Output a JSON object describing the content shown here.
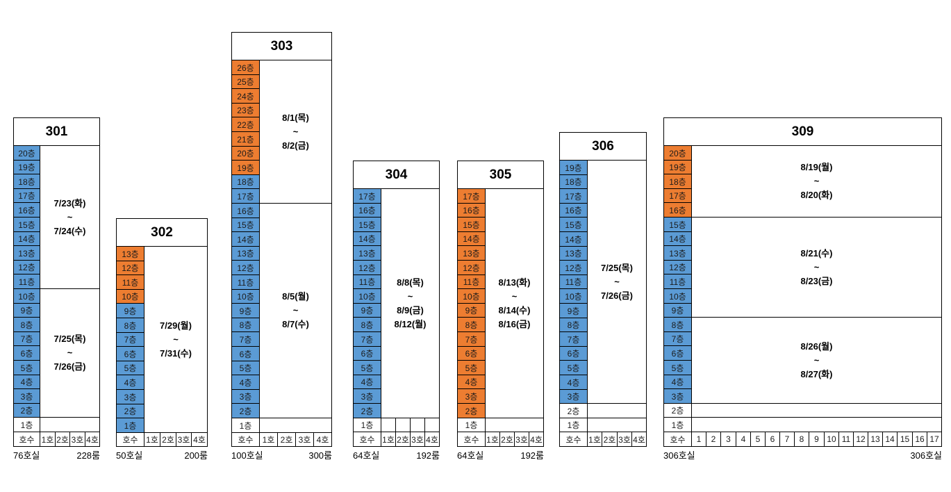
{
  "colors": {
    "blue": "#5B9BD5",
    "orange": "#ED7D31",
    "white": "#FFFFFF",
    "border": "#000000"
  },
  "buildings": [
    {
      "name": "301",
      "floors": [
        {
          "label": "20층",
          "color": "blue"
        },
        {
          "label": "19층",
          "color": "blue"
        },
        {
          "label": "18층",
          "color": "blue"
        },
        {
          "label": "17층",
          "color": "blue"
        },
        {
          "label": "16층",
          "color": "blue"
        },
        {
          "label": "15층",
          "color": "blue"
        },
        {
          "label": "14층",
          "color": "blue"
        },
        {
          "label": "13층",
          "color": "blue"
        },
        {
          "label": "12층",
          "color": "blue"
        },
        {
          "label": "11층",
          "color": "blue"
        },
        {
          "label": "10층",
          "color": "blue"
        },
        {
          "label": "9층",
          "color": "blue"
        },
        {
          "label": "8층",
          "color": "blue"
        },
        {
          "label": "7층",
          "color": "blue"
        },
        {
          "label": "6층",
          "color": "blue"
        },
        {
          "label": "5층",
          "color": "blue"
        },
        {
          "label": "4층",
          "color": "blue"
        },
        {
          "label": "3층",
          "color": "blue"
        },
        {
          "label": "2층",
          "color": "blue"
        },
        {
          "label": "1층",
          "color": "white"
        }
      ],
      "sections": [
        {
          "rows": 10,
          "lines": [
            "7/23(화)",
            "~",
            "7/24(수)"
          ]
        },
        {
          "rows": 9,
          "lines": [
            "7/25(목)",
            "~",
            "7/26(금)"
          ]
        },
        {
          "rows": 1,
          "lines": []
        }
      ],
      "unit_header": "호수",
      "units": [
        "1호",
        "2호",
        "3호",
        "4호"
      ],
      "footer_left": "76호실",
      "footer_right": "228룸"
    },
    {
      "name": "302",
      "floors": [
        {
          "label": "13층",
          "color": "orange"
        },
        {
          "label": "12층",
          "color": "orange"
        },
        {
          "label": "11층",
          "color": "orange"
        },
        {
          "label": "10층",
          "color": "orange"
        },
        {
          "label": "9층",
          "color": "blue"
        },
        {
          "label": "8층",
          "color": "blue"
        },
        {
          "label": "7층",
          "color": "blue"
        },
        {
          "label": "6층",
          "color": "blue"
        },
        {
          "label": "5층",
          "color": "blue"
        },
        {
          "label": "4층",
          "color": "blue"
        },
        {
          "label": "3층",
          "color": "blue"
        },
        {
          "label": "2층",
          "color": "blue"
        },
        {
          "label": "1층",
          "color": "blue"
        }
      ],
      "sections": [
        {
          "rows": 13,
          "lines": [
            "7/29(월)",
            "~",
            "7/31(수)"
          ]
        }
      ],
      "unit_header": "호수",
      "units": [
        "1호",
        "2호",
        "3호",
        "4호"
      ],
      "footer_left": "50호실",
      "footer_right": "200룸"
    },
    {
      "name": "303",
      "floors": [
        {
          "label": "26층",
          "color": "orange"
        },
        {
          "label": "25층",
          "color": "orange"
        },
        {
          "label": "24층",
          "color": "orange"
        },
        {
          "label": "23층",
          "color": "orange"
        },
        {
          "label": "22층",
          "color": "orange"
        },
        {
          "label": "21층",
          "color": "orange"
        },
        {
          "label": "20층",
          "color": "orange"
        },
        {
          "label": "19층",
          "color": "orange"
        },
        {
          "label": "18층",
          "color": "blue"
        },
        {
          "label": "17층",
          "color": "blue"
        },
        {
          "label": "16층",
          "color": "blue"
        },
        {
          "label": "15층",
          "color": "blue"
        },
        {
          "label": "14층",
          "color": "blue"
        },
        {
          "label": "13층",
          "color": "blue"
        },
        {
          "label": "12층",
          "color": "blue"
        },
        {
          "label": "11층",
          "color": "blue"
        },
        {
          "label": "10층",
          "color": "blue"
        },
        {
          "label": "9층",
          "color": "blue"
        },
        {
          "label": "8층",
          "color": "blue"
        },
        {
          "label": "7층",
          "color": "blue"
        },
        {
          "label": "6층",
          "color": "blue"
        },
        {
          "label": "5층",
          "color": "blue"
        },
        {
          "label": "4층",
          "color": "blue"
        },
        {
          "label": "3층",
          "color": "blue"
        },
        {
          "label": "2층",
          "color": "blue"
        },
        {
          "label": "1층",
          "color": "white"
        }
      ],
      "sections": [
        {
          "rows": 10,
          "lines": [
            "8/1(목)",
            "~",
            "8/2(금)"
          ]
        },
        {
          "rows": 15,
          "lines": [
            "8/5(월)",
            "~",
            "8/7(수)"
          ]
        },
        {
          "rows": 1,
          "lines": []
        }
      ],
      "unit_header": "호수",
      "units": [
        "1호",
        "2호",
        "3호",
        "4호"
      ],
      "footer_left": "100호실",
      "footer_right": "300룸"
    },
    {
      "name": "304",
      "floors": [
        {
          "label": "17층",
          "color": "blue"
        },
        {
          "label": "16층",
          "color": "blue"
        },
        {
          "label": "15층",
          "color": "blue"
        },
        {
          "label": "14층",
          "color": "blue"
        },
        {
          "label": "13층",
          "color": "blue"
        },
        {
          "label": "12층",
          "color": "blue"
        },
        {
          "label": "11층",
          "color": "blue"
        },
        {
          "label": "10층",
          "color": "blue"
        },
        {
          "label": "9층",
          "color": "blue"
        },
        {
          "label": "8층",
          "color": "blue"
        },
        {
          "label": "7층",
          "color": "blue"
        },
        {
          "label": "6층",
          "color": "blue"
        },
        {
          "label": "5층",
          "color": "blue"
        },
        {
          "label": "4층",
          "color": "blue"
        },
        {
          "label": "3층",
          "color": "blue"
        },
        {
          "label": "2층",
          "color": "blue"
        },
        {
          "label": "1층",
          "color": "white"
        }
      ],
      "sections": [
        {
          "rows": 16,
          "lines": [
            "8/8(목)",
            "~",
            "8/9(금)",
            "8/12(월)"
          ]
        },
        {
          "rows": 1,
          "lines": [],
          "split": 4
        }
      ],
      "unit_header": "호수",
      "units": [
        "1호",
        "2호",
        "3호",
        "4호"
      ],
      "footer_left": "64호실",
      "footer_right": "192룸"
    },
    {
      "name": "305",
      "floors": [
        {
          "label": "17층",
          "color": "orange"
        },
        {
          "label": "16층",
          "color": "orange"
        },
        {
          "label": "15층",
          "color": "orange"
        },
        {
          "label": "14층",
          "color": "orange"
        },
        {
          "label": "13층",
          "color": "orange"
        },
        {
          "label": "12층",
          "color": "orange"
        },
        {
          "label": "11층",
          "color": "orange"
        },
        {
          "label": "10층",
          "color": "orange"
        },
        {
          "label": "9층",
          "color": "orange"
        },
        {
          "label": "8층",
          "color": "orange"
        },
        {
          "label": "7층",
          "color": "orange"
        },
        {
          "label": "6층",
          "color": "orange"
        },
        {
          "label": "5층",
          "color": "orange"
        },
        {
          "label": "4층",
          "color": "orange"
        },
        {
          "label": "3층",
          "color": "orange"
        },
        {
          "label": "2층",
          "color": "orange"
        },
        {
          "label": "1층",
          "color": "white"
        }
      ],
      "sections": [
        {
          "rows": 16,
          "lines": [
            "8/13(화)",
            "~",
            "8/14(수)",
            "8/16(금)"
          ]
        },
        {
          "rows": 1,
          "lines": []
        }
      ],
      "unit_header": "호수",
      "units": [
        "1호",
        "2호",
        "3호",
        "4호"
      ],
      "footer_left": "64호실",
      "footer_right": "192룸"
    },
    {
      "name": "306",
      "floors": [
        {
          "label": "19층",
          "color": "blue"
        },
        {
          "label": "18층",
          "color": "blue"
        },
        {
          "label": "17층",
          "color": "blue"
        },
        {
          "label": "16층",
          "color": "blue"
        },
        {
          "label": "15층",
          "color": "blue"
        },
        {
          "label": "14층",
          "color": "blue"
        },
        {
          "label": "13층",
          "color": "blue"
        },
        {
          "label": "12층",
          "color": "blue"
        },
        {
          "label": "11층",
          "color": "blue"
        },
        {
          "label": "10층",
          "color": "blue"
        },
        {
          "label": "9층",
          "color": "blue"
        },
        {
          "label": "8층",
          "color": "blue"
        },
        {
          "label": "7층",
          "color": "blue"
        },
        {
          "label": "6층",
          "color": "blue"
        },
        {
          "label": "5층",
          "color": "blue"
        },
        {
          "label": "4층",
          "color": "blue"
        },
        {
          "label": "3층",
          "color": "blue"
        },
        {
          "label": "2층",
          "color": "white"
        },
        {
          "label": "1층",
          "color": "white"
        }
      ],
      "sections": [
        {
          "rows": 17,
          "lines": [
            "7/25(목)",
            "~",
            "7/26(금)"
          ]
        },
        {
          "rows": 1,
          "lines": []
        },
        {
          "rows": 1,
          "lines": []
        }
      ],
      "unit_header": "호수",
      "units": [
        "1호",
        "2호",
        "3호",
        "4호"
      ]
    },
    {
      "name": "309",
      "floors": [
        {
          "label": "20층",
          "color": "orange"
        },
        {
          "label": "19층",
          "color": "orange"
        },
        {
          "label": "18층",
          "color": "orange"
        },
        {
          "label": "17층",
          "color": "orange"
        },
        {
          "label": "16층",
          "color": "orange"
        },
        {
          "label": "15층",
          "color": "blue"
        },
        {
          "label": "14층",
          "color": "blue"
        },
        {
          "label": "13층",
          "color": "blue"
        },
        {
          "label": "12층",
          "color": "blue"
        },
        {
          "label": "11층",
          "color": "blue"
        },
        {
          "label": "10층",
          "color": "blue"
        },
        {
          "label": "9층",
          "color": "blue"
        },
        {
          "label": "8층",
          "color": "blue"
        },
        {
          "label": "7층",
          "color": "blue"
        },
        {
          "label": "6층",
          "color": "blue"
        },
        {
          "label": "5층",
          "color": "blue"
        },
        {
          "label": "4층",
          "color": "blue"
        },
        {
          "label": "3층",
          "color": "blue"
        },
        {
          "label": "2층",
          "color": "white"
        },
        {
          "label": "1층",
          "color": "white"
        }
      ],
      "sections": [
        {
          "rows": 5,
          "lines": [
            "8/19(월)",
            "~",
            "8/20(화)"
          ]
        },
        {
          "rows": 7,
          "lines": [
            "8/21(수)",
            "~",
            "8/23(금)"
          ]
        },
        {
          "rows": 6,
          "lines": [
            "8/26(월)",
            "~",
            "8/27(화)"
          ]
        },
        {
          "rows": 1,
          "lines": []
        },
        {
          "rows": 1,
          "lines": []
        }
      ],
      "unit_header": "호수",
      "units": [
        "1",
        "2",
        "3",
        "4",
        "5",
        "6",
        "7",
        "8",
        "9",
        "10",
        "11",
        "12",
        "13",
        "14",
        "15",
        "16",
        "17"
      ],
      "footer_left": "306호실",
      "footer_right": "306호실"
    }
  ]
}
